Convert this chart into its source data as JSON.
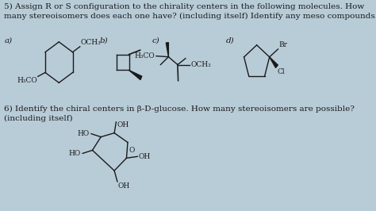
{
  "background_color": "#b8ccd8",
  "text_color": "#1a1a1a",
  "title_q5": "5) Assign R or S configuration to the chirality centers in the following molecules. How\nmany stereoisomers does each one have? (including itself) Identify any meso compounds.",
  "title_q6": "6) Identify the chiral centers in β-D-glucose. How many stereoisomers are possible?\n(including itself)",
  "label_a": "a)",
  "label_b": "b)",
  "label_c": "c)",
  "label_d": "d)",
  "label_hco_a": "H₃CO",
  "label_och3_a": "OCH₃",
  "label_hco_c": "H₃CO",
  "label_och3_c": "OCH₃",
  "label_br": "Br",
  "label_cl": "Cl",
  "label_oh1": "OH",
  "label_oh2": "OH",
  "label_oh3": "OH",
  "label_ho1": "HO",
  "label_ho2": "HO",
  "label_o": "O",
  "font_size_main": 7.5,
  "font_size_label": 7,
  "font_size_small": 6.5
}
